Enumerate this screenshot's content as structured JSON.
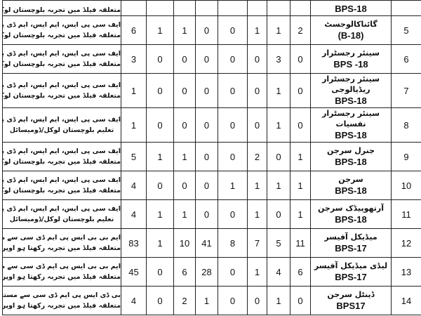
{
  "top_partial": {
    "qualification_line2": "متعلقہ فیلڈ میں تجربہ بلوچستان لوکل/ڈومیسائل",
    "bps": "BPS-18"
  },
  "rows": [
    {
      "sno": "5",
      "name": "گائناکالوجسٹ",
      "bps": "(B-18)",
      "total": "6",
      "counts": [
        "1",
        "1",
        "0",
        "0",
        "1",
        "1",
        "2"
      ],
      "qual": [
        "ایف سی پی ایس، ایم ایس، ایم ڈی یا مساوی تعلیم",
        "متعلقہ فیلڈ میں تجربہ بلوچستان لوکل/ڈومیسائل"
      ]
    },
    {
      "sno": "6",
      "name": "سینئر رجسٹرار",
      "bps": "BPS -18",
      "total": "3",
      "counts": [
        "0",
        "0",
        "0",
        "0",
        "0",
        "3",
        "0"
      ],
      "qual": [
        "ایف سی پی ایس، ایم ایس، ایم ڈی یا مساوی تعلیم",
        "متعلقہ فیلڈ میں تجربہ بلوچستان لوکل/ڈومیسائل"
      ]
    },
    {
      "sno": "7",
      "name": "سینئر رجسٹرار ریڈیالوجی",
      "bps": "BPS-18",
      "total": "1",
      "counts": [
        "0",
        "0",
        "0",
        "0",
        "0",
        "1",
        "0"
      ],
      "qual": [
        "ایف سی پی ایس، ایم ایس، ایم ڈی یا مساوی تعلیم",
        "متعلقہ فیلڈ میں تجربہ بلوچستان لوکل/ڈومیسائل"
      ]
    },
    {
      "sno": "8",
      "name": "سینئر رجسٹرار نفسیات",
      "bps": "BPS-18",
      "total": "1",
      "counts": [
        "0",
        "0",
        "0",
        "0",
        "0",
        "1",
        "0"
      ],
      "qual": [
        "ایف سی پی ایس، ایم ایس، ایم ڈی یا مساوی",
        "تعلیم بلوچستان لوکل/ڈومیسائل"
      ]
    },
    {
      "sno": "9",
      "name": "جنرل سرجن",
      "bps": "BPS-18",
      "total": "5",
      "counts": [
        "1",
        "1",
        "0",
        "0",
        "2",
        "0",
        "1"
      ],
      "qual": [
        "ایف سی پی ایس، ایم ایس، ایم ڈی یا مساوی تعلیم",
        "متعلقہ فیلڈ میں تجربہ بلوچستان لوکل/ڈومیسائل"
      ]
    },
    {
      "sno": "10",
      "name": "سرجن",
      "bps": "BPS-18",
      "total": "4",
      "counts": [
        "0",
        "0",
        "0",
        "1",
        "1",
        "1",
        "1"
      ],
      "qual": [
        "ایف سی پی ایس، ایم ایس، ایم ڈی یا مساوی تعلیم",
        "متعلقہ فیلڈ میں تجربہ بلوچستان لوکل/ڈومیسائل"
      ]
    },
    {
      "sno": "11",
      "name": "آرتھوپیڈک سرجن",
      "bps": "BPS-18",
      "total": "4",
      "counts": [
        "1",
        "1",
        "0",
        "0",
        "1",
        "0",
        "1"
      ],
      "qual": [
        "ایف سی پی ایس، ایم ایس، ایم ڈی یا مساوی",
        "تعلیم بلوچستان لوکل/ڈومیسائل"
      ]
    },
    {
      "sno": "12",
      "name": "میڈیکل آفیسر",
      "bps": "BPS-17",
      "total": "83",
      "counts": [
        "1",
        "10",
        "41",
        "8",
        "7",
        "5",
        "11"
      ],
      "qual": [
        "ایم بی بی ایس پی ایم ڈی سی سے مستقل رجسٹرڈ شدہ",
        "متعلقہ فیلڈ میں تجربہ رکھتا ہو اوپن میرٹ (آل پاکستان)"
      ]
    },
    {
      "sno": "13",
      "name": "لیڈی میڈیکل آفیسر",
      "bps": "BPS-17",
      "total": "45",
      "counts": [
        "0",
        "6",
        "28",
        "0",
        "1",
        "4",
        "6"
      ],
      "qual": [
        "ایم بی بی ایس پی ایم ڈی سی سے مستقل رجسٹرڈ شدہ",
        "متعلقہ فیلڈ میں تجربہ رکھتا ہو اوپن میرٹ (آل پاکستان)"
      ]
    },
    {
      "sno": "14",
      "name": "ڈینٹل سرجن",
      "bps": "BPS17",
      "total": "4",
      "counts": [
        "0",
        "2",
        "1",
        "0",
        "0",
        "1",
        "0"
      ],
      "qual": [
        "بی ڈی ایس پی ایم ڈی سی سے مستقل رجسٹرڈ شدہ",
        "متعلقہ فیلڈ میں تجربہ رکھتا ہو اوپن میرٹ (آل پاکستان)"
      ]
    }
  ]
}
